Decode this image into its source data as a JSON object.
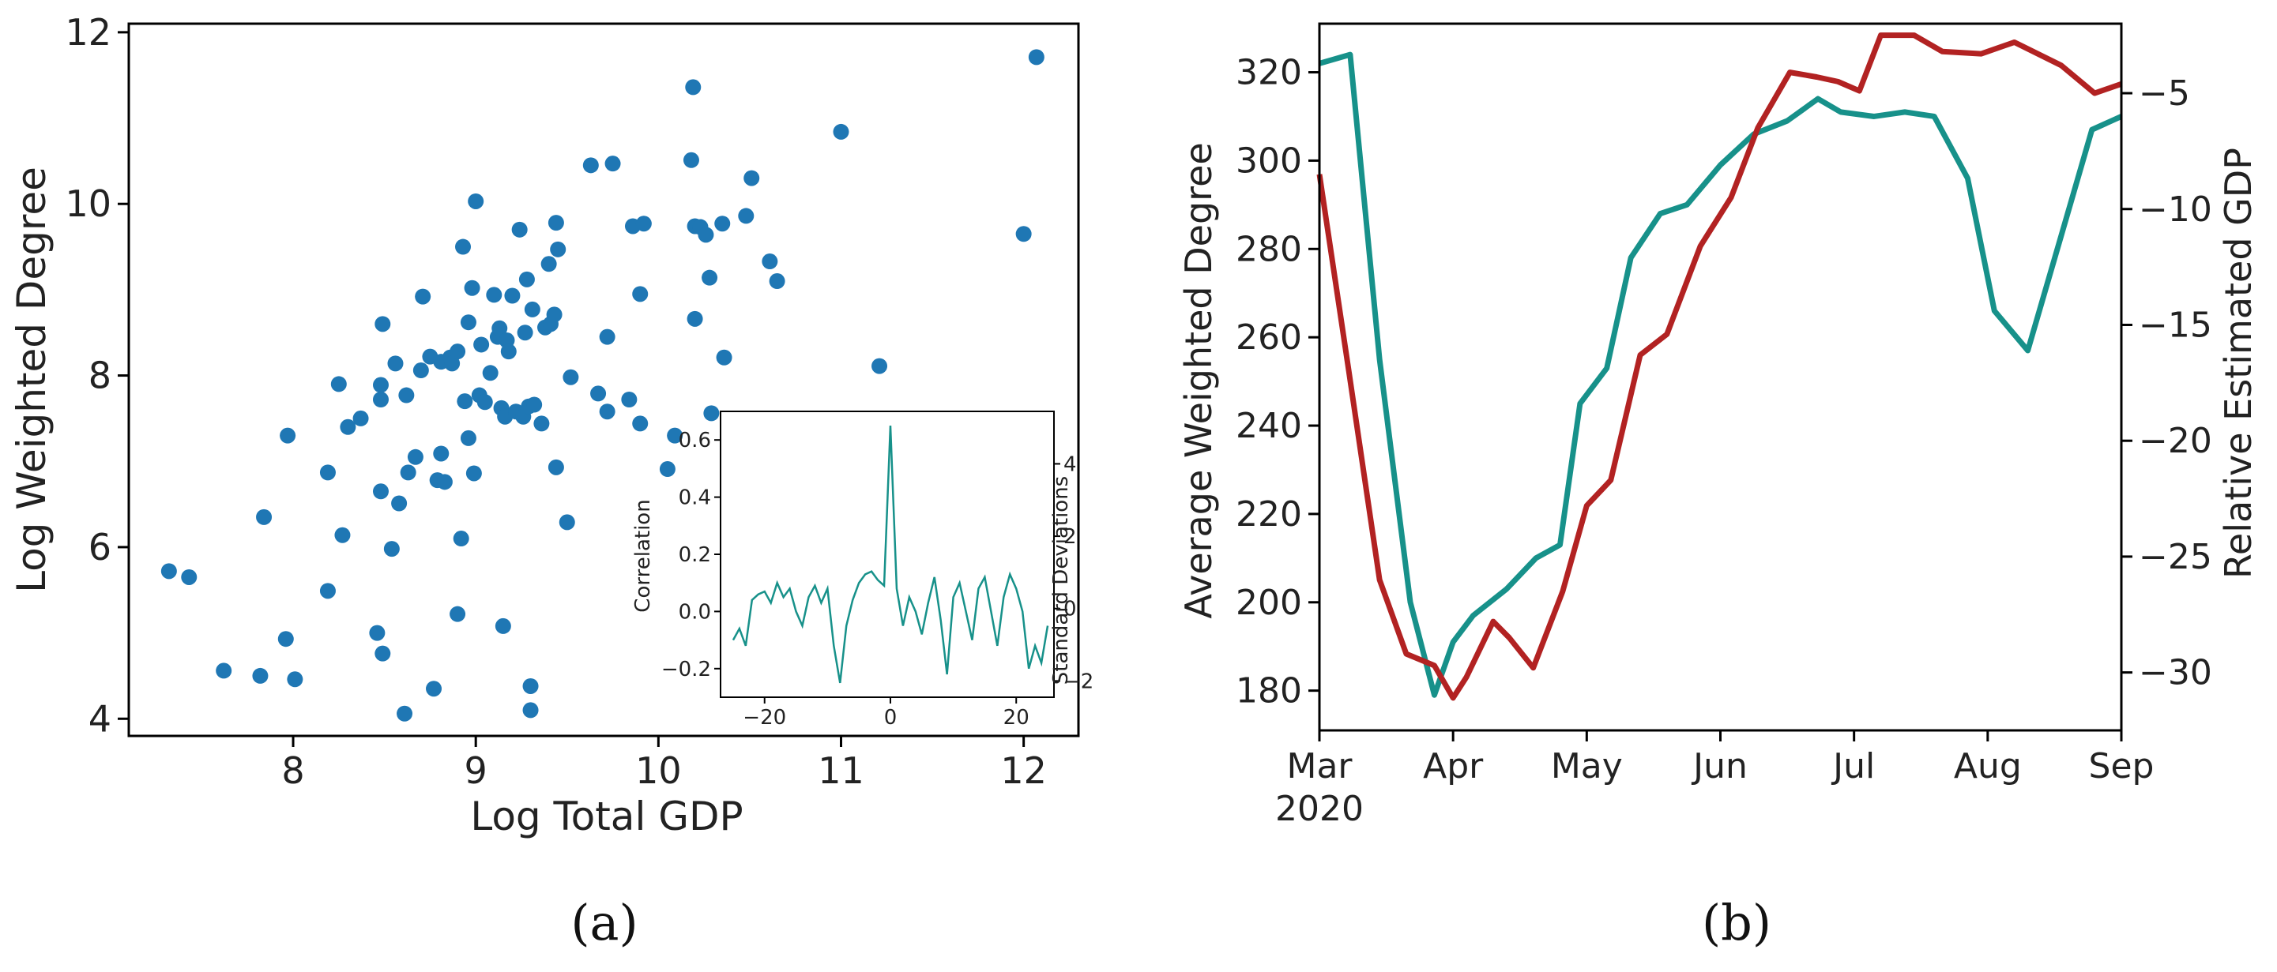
{
  "colors": {
    "scatter": "#1f77b4",
    "teal": "#17918a",
    "red": "#b22222",
    "axis": "#000000"
  },
  "panel_labels": {
    "a": "(a)",
    "b": "(b)"
  },
  "chart_data": [
    {
      "id": "a-main",
      "type": "scatter",
      "title": "",
      "xlabel": "Log Total GDP",
      "ylabel": "Log Weighted Degree",
      "xlim": [
        7.1,
        12.3
      ],
      "ylim": [
        3.8,
        12.1
      ],
      "xticks": [
        8,
        9,
        10,
        11,
        12
      ],
      "yticks": [
        4,
        6,
        8,
        10,
        12
      ],
      "points": [
        [
          7.32,
          5.72
        ],
        [
          7.43,
          5.65
        ],
        [
          7.62,
          4.56
        ],
        [
          7.82,
          4.5
        ],
        [
          7.84,
          6.35
        ],
        [
          7.96,
          4.93
        ],
        [
          7.97,
          7.3
        ],
        [
          8.01,
          4.46
        ],
        [
          8.19,
          6.87
        ],
        [
          8.19,
          5.49
        ],
        [
          8.25,
          7.9
        ],
        [
          8.27,
          6.14
        ],
        [
          8.3,
          7.4
        ],
        [
          8.37,
          7.5
        ],
        [
          8.46,
          5.0
        ],
        [
          8.48,
          7.89
        ],
        [
          8.48,
          7.72
        ],
        [
          8.48,
          6.65
        ],
        [
          8.49,
          8.6
        ],
        [
          8.49,
          4.76
        ],
        [
          8.54,
          5.98
        ],
        [
          8.56,
          8.14
        ],
        [
          8.58,
          6.51
        ],
        [
          8.61,
          4.06
        ],
        [
          8.62,
          7.77
        ],
        [
          8.63,
          6.87
        ],
        [
          8.67,
          7.05
        ],
        [
          8.7,
          8.06
        ],
        [
          8.71,
          8.92
        ],
        [
          8.75,
          8.22
        ],
        [
          8.77,
          4.35
        ],
        [
          8.79,
          6.78
        ],
        [
          8.81,
          8.16
        ],
        [
          8.81,
          7.09
        ],
        [
          8.83,
          6.76
        ],
        [
          8.86,
          8.21
        ],
        [
          8.87,
          8.14
        ],
        [
          8.9,
          8.28
        ],
        [
          8.9,
          5.22
        ],
        [
          8.92,
          6.1
        ],
        [
          8.93,
          9.5
        ],
        [
          8.94,
          7.7
        ],
        [
          8.96,
          8.62
        ],
        [
          8.96,
          7.27
        ],
        [
          8.98,
          9.02
        ],
        [
          8.99,
          6.86
        ],
        [
          9.0,
          10.03
        ],
        [
          9.02,
          7.77
        ],
        [
          9.03,
          8.36
        ],
        [
          9.05,
          7.69
        ],
        [
          9.08,
          8.03
        ],
        [
          9.1,
          8.94
        ],
        [
          9.12,
          8.45
        ],
        [
          9.13,
          8.55
        ],
        [
          9.14,
          7.62
        ],
        [
          9.15,
          5.08
        ],
        [
          9.16,
          7.52
        ],
        [
          9.17,
          8.41
        ],
        [
          9.18,
          8.28
        ],
        [
          9.2,
          8.93
        ],
        [
          9.22,
          7.58
        ],
        [
          9.24,
          9.7
        ],
        [
          9.26,
          7.52
        ],
        [
          9.27,
          8.5
        ],
        [
          9.28,
          9.12
        ],
        [
          9.29,
          7.64
        ],
        [
          9.3,
          4.38
        ],
        [
          9.3,
          4.1
        ],
        [
          9.31,
          8.77
        ],
        [
          9.32,
          7.66
        ],
        [
          9.36,
          7.44
        ],
        [
          9.38,
          8.56
        ],
        [
          9.4,
          9.3
        ],
        [
          9.41,
          8.6
        ],
        [
          9.43,
          8.71
        ],
        [
          9.44,
          6.93
        ],
        [
          9.44,
          9.78
        ],
        [
          9.45,
          9.47
        ],
        [
          9.5,
          6.29
        ],
        [
          9.52,
          7.98
        ],
        [
          9.63,
          10.45
        ],
        [
          9.67,
          7.79
        ],
        [
          9.72,
          8.45
        ],
        [
          9.72,
          7.58
        ],
        [
          9.75,
          10.47
        ],
        [
          9.84,
          7.72
        ],
        [
          9.86,
          9.74
        ],
        [
          9.9,
          7.44
        ],
        [
          9.9,
          8.95
        ],
        [
          9.92,
          9.77
        ],
        [
          10.05,
          6.91
        ],
        [
          10.09,
          7.3
        ],
        [
          10.18,
          10.51
        ],
        [
          10.19,
          11.36
        ],
        [
          10.2,
          9.74
        ],
        [
          10.2,
          8.66
        ],
        [
          10.23,
          9.73
        ],
        [
          10.26,
          9.64
        ],
        [
          10.28,
          9.14
        ],
        [
          10.29,
          7.56
        ],
        [
          10.35,
          9.77
        ],
        [
          10.36,
          8.21
        ],
        [
          10.48,
          9.86
        ],
        [
          10.51,
          10.3
        ],
        [
          10.61,
          9.33
        ],
        [
          10.65,
          9.1
        ],
        [
          11.0,
          10.84
        ],
        [
          11.21,
          8.11
        ],
        [
          12.0,
          9.65
        ],
        [
          12.07,
          11.71
        ]
      ]
    },
    {
      "id": "a-inset",
      "type": "line",
      "title": "",
      "xlabel": "",
      "ylabel": "Correlation",
      "ylabel_right": "Standard Deviations",
      "xlim": [
        -27,
        26
      ],
      "ylim": [
        -0.3,
        0.7
      ],
      "ylim_right": [
        -2.45,
        5.45
      ],
      "xticks": [
        -20,
        0,
        20
      ],
      "yticks": [
        -0.2,
        0.0,
        0.2,
        0.4,
        0.6
      ],
      "yticks_right": [
        -2,
        0,
        2,
        4
      ],
      "series": [
        {
          "name": "correlation",
          "x": [
            -25,
            -24,
            -23,
            -22,
            -21,
            -20,
            -19,
            -18,
            -17,
            -16,
            -15,
            -14,
            -13,
            -12,
            -11,
            -10,
            -9,
            -8,
            -7,
            -6,
            -5,
            -4,
            -3,
            -2,
            -1,
            0,
            1,
            2,
            3,
            4,
            5,
            6,
            7,
            8,
            9,
            10,
            11,
            12,
            13,
            14,
            15,
            16,
            17,
            18,
            19,
            20,
            21,
            22,
            23,
            24,
            25
          ],
          "y": [
            -0.1,
            -0.06,
            -0.12,
            0.04,
            0.06,
            0.07,
            0.03,
            0.1,
            0.05,
            0.08,
            0.0,
            -0.05,
            0.05,
            0.09,
            0.03,
            0.08,
            -0.12,
            -0.25,
            -0.05,
            0.04,
            0.1,
            0.13,
            0.14,
            0.11,
            0.09,
            0.65,
            0.08,
            -0.05,
            0.05,
            0.0,
            -0.08,
            0.03,
            0.12,
            -0.03,
            -0.22,
            0.05,
            0.1,
            0.0,
            -0.1,
            0.08,
            0.12,
            0.0,
            -0.12,
            0.05,
            0.13,
            0.08,
            0.0,
            -0.2,
            -0.12,
            -0.18,
            -0.05
          ]
        }
      ]
    },
    {
      "id": "b",
      "type": "line",
      "title": "",
      "xlabel": "",
      "ylabel": "Average Weighted Degree",
      "ylabel_right": "Relative Estimated GDP",
      "xlim": [
        0,
        6
      ],
      "ylim": [
        171,
        331
      ],
      "ylim_right": [
        -32.5,
        -2.0
      ],
      "xtick_positions": [
        0,
        1,
        2,
        3,
        4,
        5,
        6
      ],
      "xtick_labels": [
        "Mar\n2020",
        "Apr",
        "May",
        "Jun",
        "Jul",
        "Aug",
        "Sep"
      ],
      "yticks": [
        180,
        200,
        220,
        240,
        260,
        280,
        300,
        320
      ],
      "yticks_right": [
        -30,
        -25,
        -20,
        -15,
        -10,
        -5
      ],
      "series": [
        {
          "name": "Average Weighted Degree",
          "axis": "left",
          "color": "teal",
          "x": [
            0.0,
            0.23,
            0.45,
            0.68,
            0.86,
            1.0,
            1.15,
            1.4,
            1.62,
            1.8,
            1.95,
            2.15,
            2.33,
            2.55,
            2.75,
            3.0,
            3.25,
            3.5,
            3.73,
            3.9,
            4.15,
            4.38,
            4.6,
            4.85,
            5.05,
            5.3,
            5.55,
            5.78,
            6.0
          ],
          "y": [
            322,
            324,
            255,
            200,
            179,
            191,
            197,
            203,
            210,
            213,
            245,
            253,
            278,
            288,
            290,
            299,
            306,
            309,
            314,
            311,
            310,
            311,
            310,
            296,
            266,
            257,
            283,
            307,
            310
          ]
        },
        {
          "name": "Relative Estimated GDP",
          "axis": "right",
          "color": "red",
          "x": [
            0.0,
            0.22,
            0.45,
            0.65,
            0.86,
            1.0,
            1.1,
            1.3,
            1.42,
            1.6,
            1.82,
            2.0,
            2.18,
            2.4,
            2.6,
            2.85,
            3.08,
            3.28,
            3.52,
            3.72,
            3.88,
            4.04,
            4.2,
            4.45,
            4.66,
            4.95,
            5.2,
            5.55,
            5.8,
            6.0
          ],
          "y": [
            -8.5,
            -17.0,
            -26.0,
            -29.2,
            -29.7,
            -31.1,
            -30.2,
            -27.8,
            -28.5,
            -29.8,
            -26.5,
            -22.8,
            -21.7,
            -16.3,
            -15.4,
            -11.6,
            -9.5,
            -6.5,
            -4.1,
            -4.3,
            -4.5,
            -4.9,
            -2.5,
            -2.5,
            -3.2,
            -3.3,
            -2.8,
            -3.8,
            -5.0,
            -4.6
          ]
        }
      ]
    }
  ]
}
